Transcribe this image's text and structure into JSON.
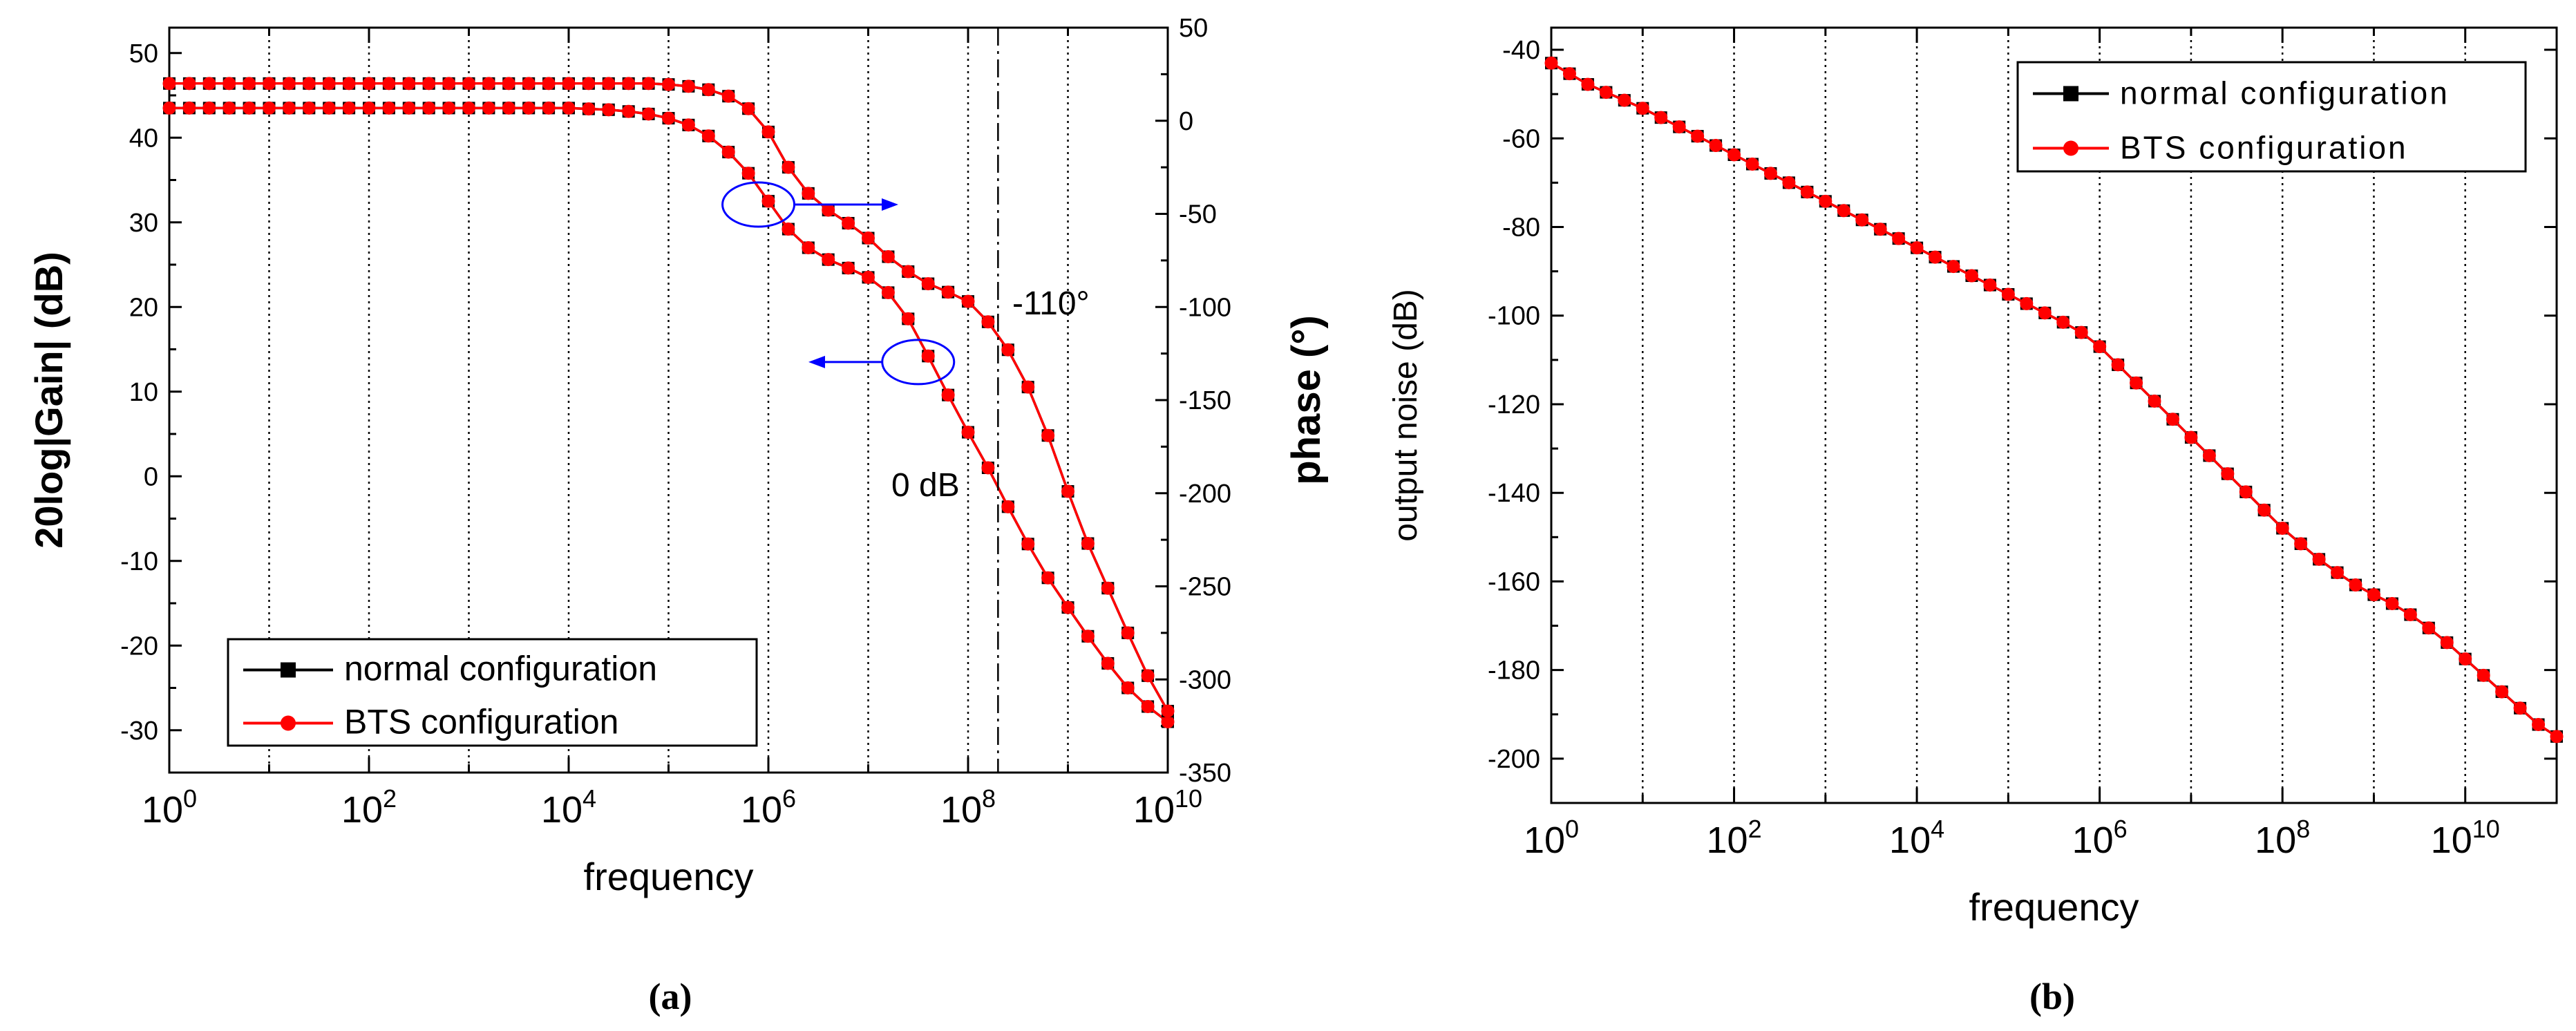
{
  "colors": {
    "normal": "#000000",
    "bts": "#ff0000",
    "annotation": "#0000ff"
  },
  "chart_data": [
    {
      "id": "a",
      "type": "line",
      "caption": "(a)",
      "xlabel": "frequency",
      "ylabel": "20log|Gain| (dB)",
      "y2label": "phase (°)",
      "xscale": "log",
      "xlim": [
        1,
        10000000000
      ],
      "ylim": [
        -35,
        53
      ],
      "y2lim": [
        -350,
        50
      ],
      "x_ticks": [
        {
          "value": 1,
          "base": "10",
          "exp": "0"
        },
        {
          "value": 100,
          "base": "10",
          "exp": "2"
        },
        {
          "value": 10000,
          "base": "10",
          "exp": "4"
        },
        {
          "value": 1000000,
          "base": "10",
          "exp": "6"
        },
        {
          "value": 100000000,
          "base": "10",
          "exp": "8"
        },
        {
          "value": 10000000000,
          "base": "10",
          "exp": "10"
        }
      ],
      "y_ticks": [
        {
          "value": 50,
          "label": "50"
        },
        {
          "value": 40,
          "label": "40"
        },
        {
          "value": 30,
          "label": "30"
        },
        {
          "value": 20,
          "label": "20"
        },
        {
          "value": 10,
          "label": "10"
        },
        {
          "value": 0,
          "label": "0"
        },
        {
          "value": -10,
          "label": "-10"
        },
        {
          "value": -20,
          "label": "-20"
        },
        {
          "value": -30,
          "label": "-30"
        }
      ],
      "y2_ticks": [
        {
          "value": 50,
          "label": "50"
        },
        {
          "value": 0,
          "label": "0"
        },
        {
          "value": -50,
          "label": "-50"
        },
        {
          "value": -100,
          "label": "-100"
        },
        {
          "value": -150,
          "label": "-150"
        },
        {
          "value": -200,
          "label": "-200"
        },
        {
          "value": -250,
          "label": "-250"
        },
        {
          "value": -300,
          "label": "-300"
        },
        {
          "value": -350,
          "label": "-350"
        }
      ],
      "grid": "vertical dotted at each decade",
      "legend": {
        "position": "bottom-left",
        "entries": [
          "normal configuration",
          "BTS configuration"
        ]
      },
      "annotations": [
        "-110°",
        "0 dB"
      ],
      "marker_logx": [
        0,
        0.2,
        0.4,
        0.6,
        0.8,
        1,
        1.2,
        1.4,
        1.6,
        1.8,
        2,
        2.2,
        2.4,
        2.6,
        2.8,
        3,
        3.2,
        3.4,
        3.6,
        3.8,
        4,
        4.2,
        4.4,
        4.6,
        4.8,
        5,
        5.2,
        5.4,
        5.6,
        5.8,
        6,
        6.2,
        6.4,
        6.6,
        6.8,
        7,
        7.2,
        7.4,
        7.6,
        7.8,
        8,
        8.2,
        8.4,
        8.6,
        8.8,
        9,
        9.2,
        9.4,
        9.6,
        9.8,
        10
      ],
      "series": [
        {
          "name": "normal configuration",
          "quantity": "gain",
          "axis": "left",
          "color": "#000000",
          "values": [
            43.5,
            43.5,
            43.5,
            43.5,
            43.5,
            43.5,
            43.5,
            43.5,
            43.5,
            43.5,
            43.5,
            43.5,
            43.5,
            43.5,
            43.5,
            43.5,
            43.5,
            43.5,
            43.5,
            43.5,
            43.5,
            43.4,
            43.3,
            43.1,
            42.8,
            42.3,
            41.5,
            40.2,
            38.3,
            35.8,
            32.5,
            29.2,
            27.0,
            25.6,
            24.6,
            23.5,
            21.7,
            18.6,
            14.2,
            9.6,
            5.2,
            1.0,
            -3.6,
            -8.0,
            -12.0,
            -15.5,
            -18.9,
            -22.1,
            -25.0,
            -27.2,
            -29.0
          ]
        },
        {
          "name": "BTS configuration",
          "quantity": "gain",
          "axis": "left",
          "color": "#ff0000",
          "values": [
            43.5,
            43.5,
            43.5,
            43.5,
            43.5,
            43.5,
            43.5,
            43.5,
            43.5,
            43.5,
            43.5,
            43.5,
            43.5,
            43.5,
            43.5,
            43.5,
            43.5,
            43.5,
            43.5,
            43.5,
            43.5,
            43.4,
            43.3,
            43.1,
            42.8,
            42.3,
            41.5,
            40.2,
            38.3,
            35.8,
            32.5,
            29.2,
            27.0,
            25.6,
            24.6,
            23.5,
            21.7,
            18.6,
            14.2,
            9.6,
            5.2,
            1.0,
            -3.6,
            -8.0,
            -12.0,
            -15.5,
            -18.9,
            -22.1,
            -25.0,
            -27.2,
            -29.0
          ]
        },
        {
          "name": "normal configuration",
          "quantity": "phase",
          "axis": "right",
          "color": "#000000",
          "values": [
            20,
            20,
            20,
            20,
            20,
            20,
            20,
            20,
            20,
            20,
            20,
            20,
            20,
            20,
            20,
            20,
            20,
            20,
            20,
            20,
            20,
            20,
            20,
            20,
            20,
            19.5,
            18.5,
            16.7,
            13.2,
            6.5,
            -6,
            -25,
            -39,
            -48,
            -55,
            -63,
            -73,
            -81,
            -87.5,
            -92,
            -97,
            -108,
            -123,
            -143,
            -169,
            -199,
            -227,
            -251,
            -275,
            -298,
            -317
          ]
        },
        {
          "name": "BTS configuration",
          "quantity": "phase",
          "axis": "right",
          "color": "#ff0000",
          "values": [
            20,
            20,
            20,
            20,
            20,
            20,
            20,
            20,
            20,
            20,
            20,
            20,
            20,
            20,
            20,
            20,
            20,
            20,
            20,
            20,
            20,
            20,
            20,
            20,
            20,
            19.5,
            18.5,
            16.7,
            13.2,
            6.5,
            -6,
            -25,
            -39,
            -48,
            -55,
            -63,
            -73,
            -81,
            -87.5,
            -92,
            -97,
            -108,
            -123,
            -143,
            -169,
            -199,
            -227,
            -251,
            -275,
            -298,
            -317
          ]
        }
      ]
    },
    {
      "id": "b",
      "type": "line",
      "caption": "(b)",
      "xlabel": "frequency",
      "ylabel": "output noise (dB)",
      "xscale": "log",
      "xlim": [
        1,
        100000000000
      ],
      "ylim": [
        -210,
        -35
      ],
      "x_ticks": [
        {
          "value": 1,
          "base": "10",
          "exp": "0"
        },
        {
          "value": 100,
          "base": "10",
          "exp": "2"
        },
        {
          "value": 10000,
          "base": "10",
          "exp": "4"
        },
        {
          "value": 1000000,
          "base": "10",
          "exp": "6"
        },
        {
          "value": 100000000,
          "base": "10",
          "exp": "8"
        },
        {
          "value": 10000000000,
          "base": "10",
          "exp": "10"
        }
      ],
      "y_ticks": [
        {
          "value": -40,
          "label": "-40"
        },
        {
          "value": -60,
          "label": "-60"
        },
        {
          "value": -80,
          "label": "-80"
        },
        {
          "value": -100,
          "label": "-100"
        },
        {
          "value": -120,
          "label": "-120"
        },
        {
          "value": -140,
          "label": "-140"
        },
        {
          "value": -160,
          "label": "-160"
        },
        {
          "value": -180,
          "label": "-180"
        },
        {
          "value": -200,
          "label": "-200"
        }
      ],
      "grid": "vertical dotted at each decade",
      "legend": {
        "position": "top-right",
        "entries": [
          "normal configuration",
          "BTS configuration"
        ]
      },
      "marker_logx": [
        0,
        0.2,
        0.4,
        0.6,
        0.8,
        1,
        1.2,
        1.4,
        1.6,
        1.8,
        2,
        2.2,
        2.4,
        2.6,
        2.8,
        3,
        3.2,
        3.4,
        3.6,
        3.8,
        4,
        4.2,
        4.4,
        4.6,
        4.8,
        5,
        5.2,
        5.4,
        5.6,
        5.8,
        6,
        6.2,
        6.4,
        6.6,
        6.8,
        7,
        7.2,
        7.4,
        7.6,
        7.8,
        8,
        8.2,
        8.4,
        8.6,
        8.8,
        9,
        9.2,
        9.4,
        9.6,
        9.8,
        10,
        10.2,
        10.4,
        10.6,
        10.8,
        11
      ],
      "series": [
        {
          "name": "normal configuration",
          "color": "#000000",
          "values": [
            -43,
            -45.4,
            -47.8,
            -49.6,
            -51.4,
            -53.2,
            -55.3,
            -57.4,
            -59.5,
            -61.6,
            -63.7,
            -65.8,
            -67.9,
            -70.0,
            -72.1,
            -74.2,
            -76.3,
            -78.4,
            -80.5,
            -82.6,
            -84.7,
            -86.8,
            -88.9,
            -91.0,
            -93.1,
            -95.2,
            -97.3,
            -99.4,
            -101.5,
            -103.8,
            -107,
            -111.1,
            -115.2,
            -119.3,
            -123.4,
            -127.5,
            -131.6,
            -135.7,
            -139.8,
            -143.9,
            -148,
            -151.5,
            -155,
            -158,
            -160.8,
            -163,
            -165,
            -167.5,
            -170.5,
            -173.8,
            -177.5,
            -181.2,
            -184.9,
            -188.6,
            -192.3,
            -195
          ]
        },
        {
          "name": "BTS configuration",
          "color": "#ff0000",
          "values": [
            -43,
            -45.4,
            -47.8,
            -49.6,
            -51.4,
            -53.2,
            -55.3,
            -57.4,
            -59.5,
            -61.6,
            -63.7,
            -65.8,
            -67.9,
            -70.0,
            -72.1,
            -74.2,
            -76.3,
            -78.4,
            -80.5,
            -82.6,
            -84.7,
            -86.8,
            -88.9,
            -91.0,
            -93.1,
            -95.2,
            -97.3,
            -99.4,
            -101.5,
            -103.8,
            -107,
            -111.1,
            -115.2,
            -119.3,
            -123.4,
            -127.5,
            -131.6,
            -135.7,
            -139.8,
            -143.9,
            -148,
            -151.5,
            -155,
            -158,
            -160.8,
            -163,
            -165,
            -167.5,
            -170.5,
            -173.8,
            -177.5,
            -181.2,
            -184.9,
            -188.6,
            -192.3,
            -195
          ]
        }
      ]
    }
  ]
}
